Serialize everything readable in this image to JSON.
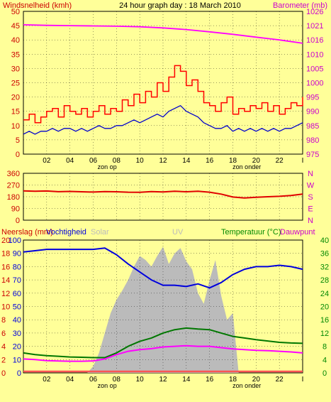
{
  "title": "24 hour graph day : 18 March 2010",
  "colors": {
    "background": "#ffff99",
    "wind": "#ff0000",
    "wind_avg": "#0000cc",
    "barometer": "#ff00ff",
    "direction": "#e00000",
    "solar": "#bbbbbb",
    "humidity": "#0000dd",
    "temperature": "#007700",
    "dewpoint": "#ff00ff",
    "rain": "#ff5555",
    "label_left": "#cc0000",
    "label_right": "#cc00cc",
    "label_green": "#008800",
    "grid": "#000000"
  },
  "x_ticks": [
    "02",
    "04",
    "06",
    "08",
    "10",
    "12",
    "14",
    "16",
    "18",
    "20",
    "22"
  ],
  "x_end_tick": "I",
  "sun_labels": {
    "sunrise": "zon op",
    "sunset": "zon onder",
    "sunrise_hour": 7.2,
    "sunset_hour": 19.2
  },
  "chart_data": [
    {
      "type": "line",
      "name": "wind_barometer",
      "xlabel": "",
      "ylabel_left": "Windsnelheid (kmh)",
      "ylabel_right": "Barometer (mb)",
      "x_range": [
        0,
        24
      ],
      "ylim_left": [
        0,
        50
      ],
      "ylim_right": [
        975,
        1026
      ],
      "y_ticks_left": [
        "0",
        "5",
        "10",
        "15",
        "20",
        "25",
        "30",
        "35",
        "40",
        "45",
        "50"
      ],
      "y_ticks_right": [
        "975",
        "980",
        "985",
        "990",
        "995",
        "1000",
        "1005",
        "1010",
        "1016",
        "1021",
        "1026"
      ],
      "grid": true,
      "series": [
        {
          "key": "gust",
          "axis": "left",
          "color": "#ff0000",
          "x": [
            0,
            0.5,
            1,
            1.5,
            2,
            2.5,
            3,
            3.5,
            4,
            4.5,
            5,
            5.5,
            6,
            6.5,
            7,
            7.5,
            8,
            8.5,
            9,
            9.5,
            10,
            10.5,
            11,
            11.5,
            12,
            12.5,
            13,
            13.5,
            14,
            14.5,
            15,
            15.5,
            16,
            16.5,
            17,
            17.5,
            18,
            18.5,
            19,
            19.5,
            20,
            20.5,
            21,
            21.5,
            22,
            22.5,
            23,
            23.5,
            24
          ],
          "values": [
            12,
            14,
            11,
            13,
            15,
            16,
            13,
            17,
            15,
            14,
            16,
            13,
            15,
            17,
            14,
            16,
            15,
            19,
            17,
            21,
            18,
            22,
            20,
            25,
            22,
            27,
            31,
            29,
            24,
            26,
            22,
            18,
            17,
            15,
            18,
            20,
            14,
            16,
            15,
            17,
            16,
            18,
            15,
            17,
            14,
            16,
            18,
            17,
            20
          ]
        },
        {
          "key": "wind_avg",
          "axis": "left",
          "color": "#0000cc",
          "x": [
            0,
            0.5,
            1,
            1.5,
            2,
            2.5,
            3,
            3.5,
            4,
            4.5,
            5,
            5.5,
            6,
            6.5,
            7,
            7.5,
            8,
            8.5,
            9,
            9.5,
            10,
            10.5,
            11,
            11.5,
            12,
            12.5,
            13,
            13.5,
            14,
            14.5,
            15,
            15.5,
            16,
            16.5,
            17,
            17.5,
            18,
            18.5,
            19,
            19.5,
            20,
            20.5,
            21,
            21.5,
            22,
            22.5,
            23,
            23.5,
            24
          ],
          "values": [
            7,
            8,
            7,
            8,
            8,
            9,
            8,
            9,
            9,
            8,
            9,
            8,
            9,
            10,
            9,
            9,
            10,
            10,
            11,
            12,
            11,
            12,
            13,
            14,
            13,
            15,
            16,
            17,
            15,
            14,
            13,
            11,
            10,
            9,
            9,
            10,
            8,
            9,
            8,
            9,
            8,
            9,
            8,
            9,
            8,
            9,
            9,
            10,
            11
          ]
        },
        {
          "key": "barometer",
          "axis": "right",
          "color": "#ff00ff",
          "x": [
            0,
            2,
            4,
            6,
            8,
            10,
            12,
            14,
            16,
            18,
            20,
            22,
            24
          ],
          "values": [
            1021.2,
            1021.0,
            1020.9,
            1020.8,
            1020.7,
            1020.5,
            1020.1,
            1019.5,
            1018.7,
            1017.8,
            1016.8,
            1015.8,
            1014.6
          ]
        }
      ]
    },
    {
      "type": "line",
      "name": "wind_direction",
      "x_range": [
        0,
        24
      ],
      "ylim": [
        0,
        360
      ],
      "y_ticks_left": [
        "0",
        "90",
        "180",
        "270",
        "360"
      ],
      "y_ticks_right": [
        "N",
        "E",
        "S",
        "W",
        "N"
      ],
      "grid": true,
      "series": [
        {
          "key": "direction",
          "color": "#e00000",
          "x": [
            0,
            1,
            2,
            3,
            4,
            5,
            6,
            7,
            8,
            9,
            10,
            11,
            12,
            13,
            14,
            15,
            16,
            17,
            18,
            19,
            20,
            21,
            22,
            23,
            24
          ],
          "values": [
            225,
            222,
            224,
            219,
            221,
            218,
            216,
            220,
            218,
            215,
            214,
            220,
            217,
            222,
            218,
            222,
            215,
            200,
            178,
            170,
            176,
            180,
            183,
            190,
            200
          ]
        }
      ]
    },
    {
      "type": "line",
      "name": "rain_humidity_temperature",
      "x_range": [
        0,
        24
      ],
      "ylabel_left": "Neerslag (mm)",
      "ylabel_left2": "Vochtigheid",
      "ylabel_right": "Temperatuur (°C)",
      "ylabel_right2": "Dauwpunt",
      "label_solar": "Solar",
      "label_uv": "UV",
      "ylim_left": [
        0,
        100
      ],
      "ylim_right": [
        0,
        40
      ],
      "y_ticks_left_rain": [
        "0",
        "2",
        "4",
        "6",
        "8",
        "10",
        "12",
        "14",
        "16",
        "18",
        "20"
      ],
      "y_ticks_left_hum": [
        "0",
        "10",
        "20",
        "30",
        "40",
        "50",
        "60",
        "70",
        "80",
        "90",
        "100"
      ],
      "y_ticks_right": [
        "0",
        "4",
        "8",
        "12",
        "16",
        "20",
        "24",
        "28",
        "32",
        "36",
        "40"
      ],
      "grid": true,
      "series": [
        {
          "key": "solar",
          "type": "area",
          "color": "#bbbbbb",
          "x": [
            0,
            5.5,
            6,
            6.5,
            7,
            7.5,
            8,
            8.5,
            9,
            9.5,
            10,
            10.5,
            11,
            11.5,
            12,
            12.5,
            13,
            13.5,
            14,
            14.5,
            15,
            15.5,
            16,
            16.5,
            17,
            17.5,
            18,
            18.5,
            24
          ],
          "values": [
            0,
            0,
            5,
            15,
            30,
            45,
            55,
            62,
            70,
            80,
            88,
            85,
            80,
            88,
            95,
            82,
            90,
            94,
            84,
            78,
            60,
            52,
            70,
            85,
            58,
            40,
            45,
            0,
            0
          ]
        },
        {
          "key": "humidity",
          "color": "#0000dd",
          "x": [
            0,
            1,
            2,
            3,
            4,
            5,
            6,
            7,
            8,
            9,
            10,
            11,
            12,
            13,
            14,
            15,
            16,
            17,
            18,
            19,
            20,
            21,
            22,
            23,
            24
          ],
          "values": [
            91,
            92,
            93,
            93,
            93,
            93,
            93,
            94,
            89,
            82,
            76,
            70,
            66,
            66,
            65,
            67,
            64,
            68,
            74,
            78,
            80,
            80,
            81,
            80,
            78
          ]
        },
        {
          "key": "temperature",
          "axis": "right",
          "color": "#007700",
          "x": [
            0,
            1,
            2,
            3,
            4,
            5,
            6,
            7,
            8,
            9,
            10,
            11,
            12,
            13,
            14,
            15,
            16,
            17,
            18,
            19,
            20,
            21,
            22,
            23,
            24
          ],
          "values": [
            6.0,
            5.5,
            5.2,
            5.0,
            4.8,
            4.7,
            4.6,
            4.6,
            6.0,
            8.0,
            9.5,
            10.5,
            12.0,
            13.0,
            13.5,
            13.2,
            13.0,
            12.0,
            11.0,
            10.5,
            10.0,
            9.6,
            9.2,
            9.0,
            8.9
          ]
        },
        {
          "key": "dewpoint",
          "axis": "right",
          "color": "#ff00ff",
          "x": [
            0,
            1,
            2,
            3,
            4,
            5,
            6,
            7,
            8,
            9,
            10,
            11,
            12,
            13,
            14,
            15,
            16,
            17,
            18,
            19,
            20,
            21,
            22,
            23,
            24
          ],
          "values": [
            4.2,
            4.0,
            3.7,
            3.6,
            3.5,
            3.5,
            3.6,
            4.2,
            5.5,
            6.5,
            7.0,
            7.3,
            7.8,
            8.0,
            8.2,
            8.0,
            8.0,
            7.6,
            7.2,
            7.0,
            6.8,
            6.7,
            6.5,
            6.3,
            6.0
          ]
        },
        {
          "key": "rain",
          "color": "#ff5555",
          "x": [
            0,
            24
          ],
          "values": [
            0,
            0
          ]
        }
      ]
    }
  ]
}
